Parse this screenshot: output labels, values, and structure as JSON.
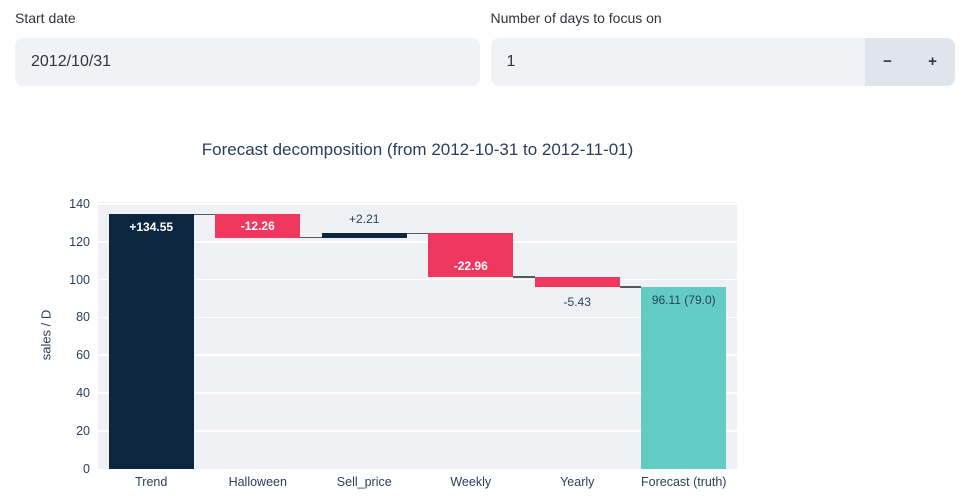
{
  "inputs": {
    "start_date": {
      "label": "Start date",
      "value": "2012/10/31"
    },
    "days_focus": {
      "label": "Number of days to focus on",
      "value": "1",
      "decrement_label": "−",
      "increment_label": "+"
    }
  },
  "chart_data": {
    "type": "waterfall",
    "title": "Forecast decomposition (from 2012-10-31 to 2012-11-01)",
    "ylabel": "sales / D",
    "xlabel": "",
    "ylim": [
      0,
      141.3
    ],
    "yticks": [
      0,
      20,
      40,
      60,
      80,
      100,
      120,
      140
    ],
    "grid": "horizontal-white-on-light-gray",
    "legend": "none",
    "categories": [
      "Trend",
      "Halloween",
      "Sell_price",
      "Weekly",
      "Yearly",
      "Forecast (truth)"
    ],
    "steps": [
      {
        "label": "Trend",
        "measure": "relative",
        "value": 134.55,
        "display": "+134.55",
        "label_pos": "inside-top",
        "label_style": "light"
      },
      {
        "label": "Halloween",
        "measure": "relative",
        "value": -12.26,
        "display": "-12.26",
        "label_pos": "inside-center",
        "label_style": "light"
      },
      {
        "label": "Sell_price",
        "measure": "relative",
        "value": 2.21,
        "display": "+2.21",
        "label_pos": "above",
        "label_style": "dark"
      },
      {
        "label": "Weekly",
        "measure": "relative",
        "value": -22.96,
        "display": "-22.96",
        "label_pos": "inside-bottom",
        "label_style": "light"
      },
      {
        "label": "Yearly",
        "measure": "relative",
        "value": -5.43,
        "display": "-5.43",
        "label_pos": "below",
        "label_style": "dark"
      },
      {
        "label": "Forecast (truth)",
        "measure": "total",
        "value": 96.11,
        "display": "96.11 (79.0)",
        "label_pos": "inside-top",
        "label_style": "dark"
      }
    ],
    "colors": {
      "increasing": "#0d2640",
      "decreasing": "#f0375f",
      "total": "#62cbc4",
      "connector": "#55585f",
      "plot_bg": "#eff1f5",
      "grid": "#ffffff",
      "text": "#2a3f5f"
    }
  }
}
